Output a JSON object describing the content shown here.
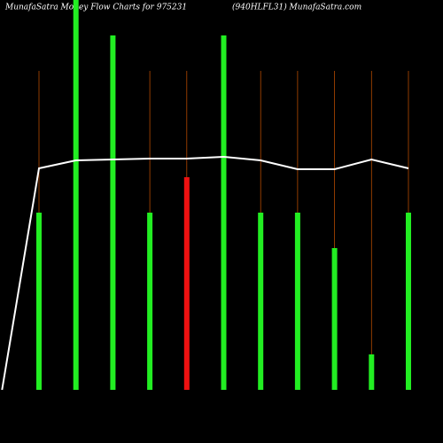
{
  "chart_data": {
    "type": "bar",
    "title": "MunafaSatra  Money Flow  Charts for 975231",
    "subtitle": "(940HLFL31) MunafaSatra.com",
    "x": [
      1,
      2,
      3,
      4,
      5,
      6,
      7,
      8,
      9,
      10,
      11
    ],
    "categories": [
      null,
      null,
      null,
      null,
      null,
      null,
      null,
      null,
      null,
      null,
      null
    ],
    "values": [
      50,
      110,
      100,
      50,
      60,
      100,
      50,
      50,
      40,
      10,
      50
    ],
    "colors": [
      "#22ee22",
      "#22ee22",
      "#22ee22",
      "#22ee22",
      "#ee1111",
      "#22ee22",
      "#22ee22",
      "#22ee22",
      "#22ee22",
      "#22ee22",
      "#22ee22"
    ],
    "line": {
      "color": "#ffffff",
      "x": [
        0,
        1,
        2,
        3,
        4,
        5,
        6,
        7,
        8,
        9,
        10,
        11
      ],
      "values": [
        0,
        62.5,
        64.75,
        65,
        65.25,
        65.25,
        65.75,
        64.75,
        62.25,
        62.25,
        65,
        62.5
      ]
    },
    "ylim": [
      0,
      110
    ]
  }
}
